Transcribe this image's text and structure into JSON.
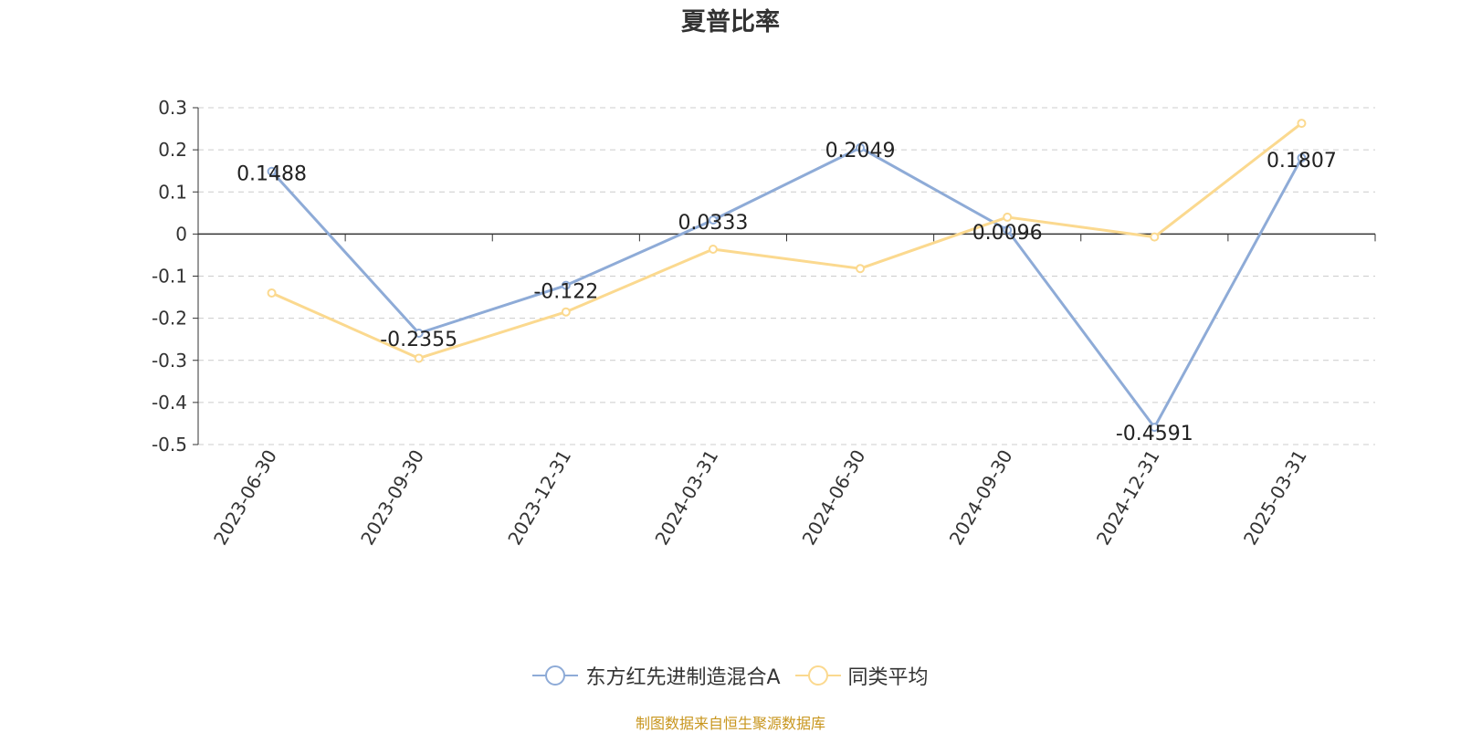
{
  "chart_data": {
    "type": "line",
    "title": "夏普比率",
    "categories": [
      "2023-06-30",
      "2023-09-30",
      "2023-12-31",
      "2024-03-31",
      "2024-06-30",
      "2024-09-30",
      "2024-12-31",
      "2025-03-31"
    ],
    "series": [
      {
        "name": "东方红先进制造混合A",
        "color": "#8eabd7",
        "values": [
          0.1488,
          -0.2355,
          -0.122,
          0.0333,
          0.2049,
          0.0096,
          -0.4591,
          0.1807
        ],
        "labels": [
          "0.1488",
          "-0.2355",
          "-0.122",
          "0.0333",
          "0.2049",
          "0.0096",
          "-0.4591",
          "0.1807"
        ]
      },
      {
        "name": "同类平均",
        "color": "#fbd98f",
        "values": [
          -0.14,
          -0.295,
          -0.185,
          -0.036,
          -0.082,
          0.04,
          -0.007,
          0.263
        ]
      }
    ],
    "yticks": [
      "0.3",
      "0.2",
      "0.1",
      "0",
      "-0.1",
      "-0.2",
      "-0.3",
      "-0.4",
      "-0.5"
    ],
    "ylim": [
      -0.5,
      0.3
    ],
    "grid": true,
    "legend_position": "bottom"
  },
  "source_note": "制图数据来自恒生聚源数据库"
}
